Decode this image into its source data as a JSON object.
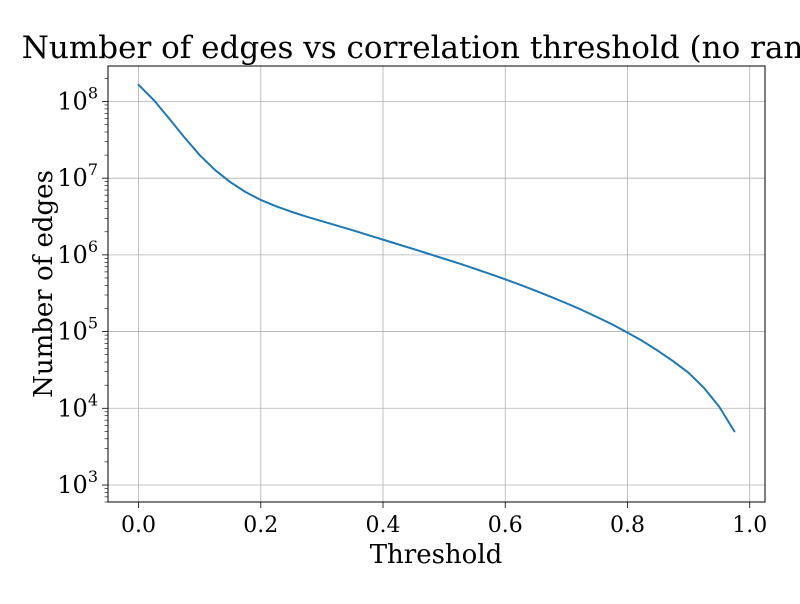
{
  "chart_data": {
    "type": "line",
    "title": "Number of edges vs correlation threshold (no ranks)",
    "xlabel": "Threshold",
    "ylabel": "Number of edges",
    "xlim": [
      -0.05,
      1.025
    ],
    "ylim": [
      600,
      290000000
    ],
    "yscale": "log",
    "grid": true,
    "x_ticks": [
      {
        "value": 0.0,
        "label": "0.0"
      },
      {
        "value": 0.2,
        "label": "0.2"
      },
      {
        "value": 0.4,
        "label": "0.4"
      },
      {
        "value": 0.6,
        "label": "0.6"
      },
      {
        "value": 0.8,
        "label": "0.8"
      },
      {
        "value": 1.0,
        "label": "1.0"
      }
    ],
    "y_ticks": [
      {
        "value": 1000,
        "base": "10",
        "exp": "3"
      },
      {
        "value": 10000,
        "base": "10",
        "exp": "4"
      },
      {
        "value": 100000,
        "base": "10",
        "exp": "5"
      },
      {
        "value": 1000000,
        "base": "10",
        "exp": "6"
      },
      {
        "value": 10000000,
        "base": "10",
        "exp": "7"
      },
      {
        "value": 100000000,
        "base": "10",
        "exp": "8"
      }
    ],
    "series": [
      {
        "color": "#1f77b4",
        "x": [
          0.0,
          0.025,
          0.05,
          0.075,
          0.1,
          0.125,
          0.15,
          0.175,
          0.2,
          0.225,
          0.25,
          0.275,
          0.3,
          0.325,
          0.35,
          0.375,
          0.4,
          0.425,
          0.45,
          0.475,
          0.5,
          0.525,
          0.55,
          0.575,
          0.6,
          0.625,
          0.65,
          0.675,
          0.7,
          0.725,
          0.75,
          0.775,
          0.8,
          0.825,
          0.85,
          0.875,
          0.9,
          0.925,
          0.95,
          0.975
        ],
        "y": [
          165000000,
          104000000,
          60000000,
          34000000,
          20000000,
          12800000,
          8900000,
          6600000,
          5200000,
          4300000,
          3650000,
          3150000,
          2750000,
          2400000,
          2100000,
          1820000,
          1580000,
          1370000,
          1190000,
          1030000,
          890000,
          770000,
          660000,
          565000,
          480000,
          405000,
          340000,
          283000,
          234000,
          192000,
          155000,
          124000,
          97000,
          75000,
          56000,
          41000,
          29000,
          18500,
          10500,
          5000
        ]
      }
    ]
  }
}
